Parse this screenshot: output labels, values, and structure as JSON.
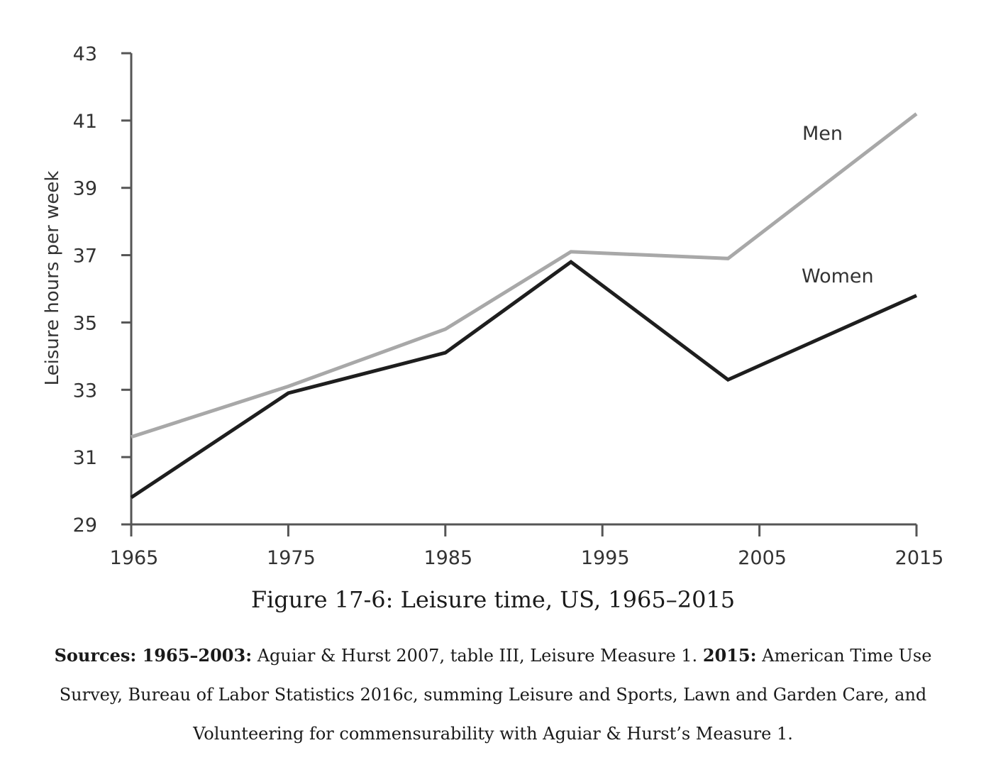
{
  "chart_data": {
    "type": "line",
    "title": "",
    "xlabel": "",
    "ylabel": "Leisure hours per week",
    "xlim": [
      1965,
      2015
    ],
    "ylim": [
      29,
      43
    ],
    "xticks": [
      1965,
      1975,
      1985,
      1995,
      2005,
      2015
    ],
    "yticks": [
      29,
      31,
      33,
      35,
      37,
      39,
      41,
      43
    ],
    "grid": false,
    "legend": "inline labels near line ends",
    "series": [
      {
        "name": "Men",
        "color": "#a8a8a8",
        "x": [
          1965,
          1975,
          1985,
          1993,
          2003,
          2015
        ],
        "y": [
          31.6,
          33.1,
          34.8,
          37.1,
          36.9,
          41.2
        ]
      },
      {
        "name": "Women",
        "color": "#1e1e1e",
        "x": [
          1965,
          1975,
          1985,
          1993,
          2003,
          2015
        ],
        "y": [
          29.8,
          32.9,
          34.1,
          36.8,
          33.3,
          35.8
        ]
      }
    ]
  },
  "caption": "Figure 17-6: Leisure time, US, 1965–2015",
  "sources": {
    "label_1": "Sources: 1965–2003:",
    "text_1": " Aguiar & Hurst 2007, table III, Leisure Measure 1. ",
    "label_2": "2015:",
    "text_2": " American Time Use Survey, Bureau of Labor Statistics 2016c, summing Leisure and Sports, Lawn and Garden Care, and Volunteering for commensurability with Aguiar & Hurst’s Measure 1."
  }
}
